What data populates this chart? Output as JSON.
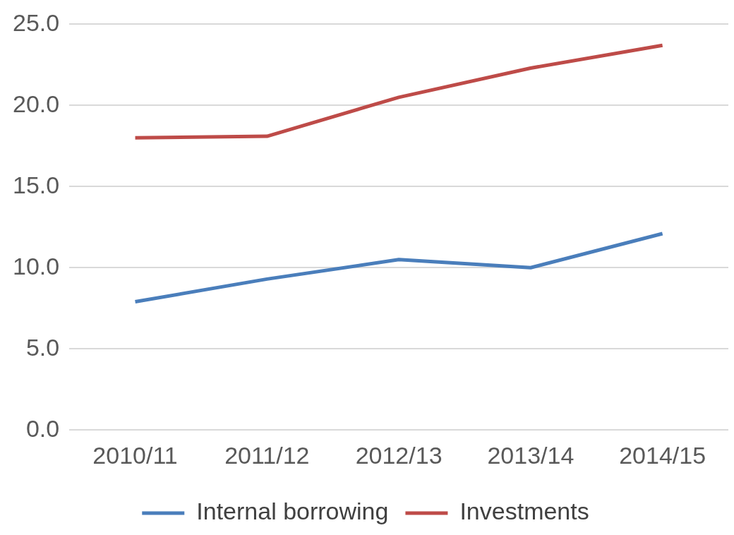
{
  "chart_data": {
    "type": "line",
    "categories": [
      "2010/11",
      "2011/12",
      "2012/13",
      "2013/14",
      "2014/15"
    ],
    "series": [
      {
        "name": "Internal borrowing",
        "color": "#4a7ebb",
        "values": [
          7.9,
          9.3,
          10.5,
          10.0,
          12.1
        ]
      },
      {
        "name": "Investments",
        "color": "#be4b48",
        "values": [
          18.0,
          18.1,
          20.5,
          22.3,
          23.7
        ]
      }
    ],
    "ylim": [
      0,
      25
    ],
    "yticks": [
      {
        "value": 0,
        "label": "0.0"
      },
      {
        "value": 5,
        "label": "5.0"
      },
      {
        "value": 10,
        "label": "10.0"
      },
      {
        "value": 15,
        "label": "15.0"
      },
      {
        "value": 20,
        "label": "20.0"
      },
      {
        "value": 25,
        "label": "25.0"
      }
    ],
    "grid": "y",
    "legend": "bottom",
    "marker": "none",
    "line_style": "solid"
  }
}
